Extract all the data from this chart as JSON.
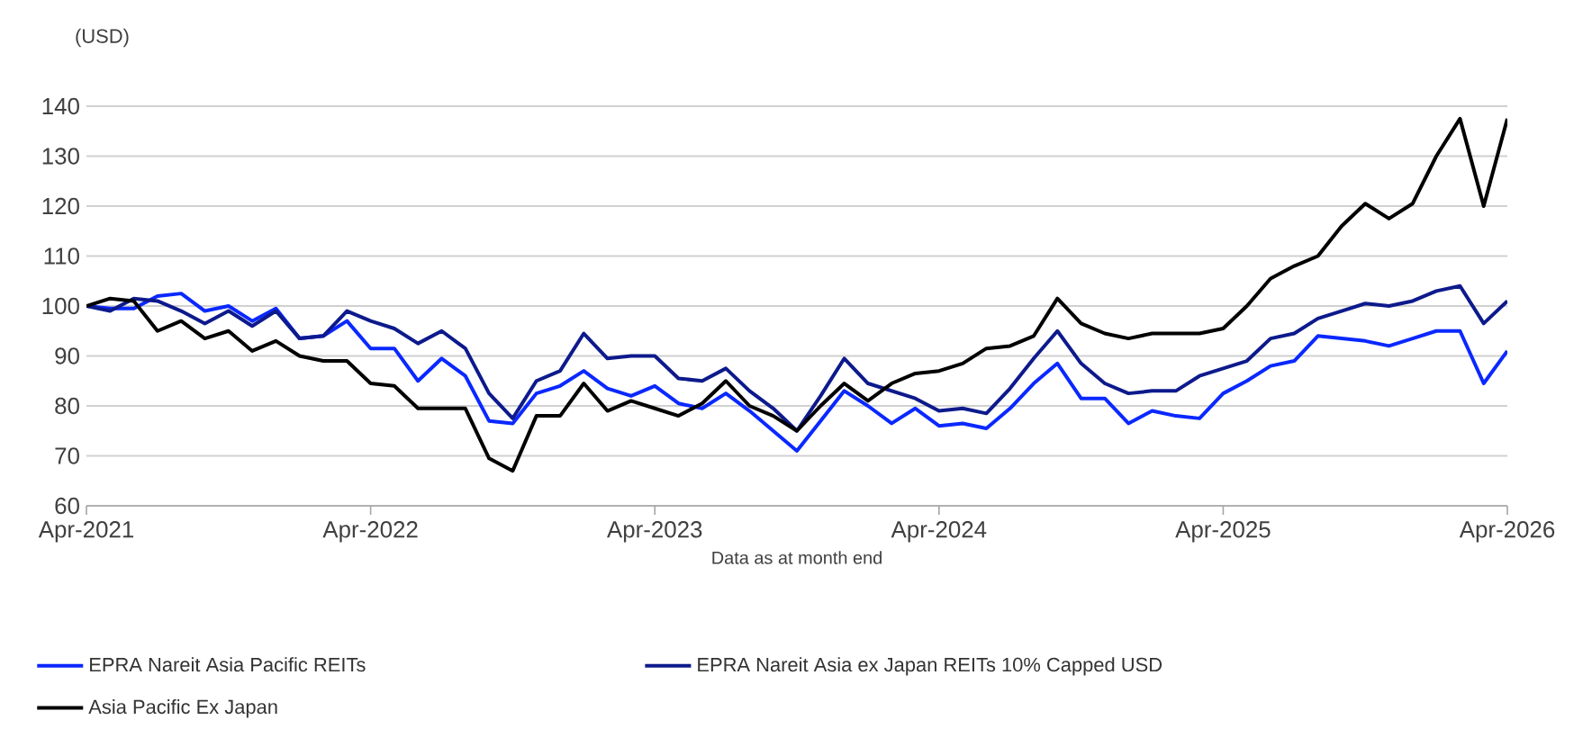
{
  "chart_data": {
    "type": "line",
    "ylabel": "(USD)",
    "xlabel": "Data as at month end",
    "categories": [
      "Apr-2021",
      null,
      null,
      null,
      null,
      null,
      null,
      null,
      null,
      null,
      null,
      null,
      "Apr-2022",
      null,
      null,
      null,
      null,
      null,
      null,
      null,
      null,
      null,
      null,
      null,
      "Apr-2023",
      null,
      null,
      null,
      null,
      null,
      null,
      null,
      null,
      null,
      null,
      null,
      "Apr-2024",
      null,
      null,
      null,
      null,
      null,
      null,
      null,
      null,
      null,
      null,
      null,
      "Apr-2025",
      null,
      null,
      null,
      null,
      null,
      null,
      null,
      null,
      null,
      null,
      null,
      "Apr-2026"
    ],
    "ylim": [
      60,
      140
    ],
    "yticks": [
      60,
      70,
      80,
      90,
      100,
      110,
      120,
      130,
      140
    ],
    "grid": "y",
    "legend": "bottom",
    "marker": "none",
    "line_style": "solid",
    "series": [
      {
        "name": "EPRA Nareit Asia Pacific REITs",
        "color": "#0a28ff",
        "values": [
          100,
          99.5,
          99.5,
          102,
          102.5,
          99,
          100,
          97,
          99.5,
          93.5,
          94,
          97,
          91.5,
          91.5,
          85,
          89.5,
          86,
          77,
          76.5,
          82.5,
          84,
          87,
          83.5,
          82,
          84,
          80.5,
          79.5,
          82.5,
          79,
          75,
          71,
          77,
          83,
          80,
          76.5,
          79.5,
          76,
          76.5,
          75.5,
          79.5,
          84.5,
          88.5,
          81.5,
          81.5,
          76.5,
          79,
          78,
          77.5,
          82.5,
          85,
          88,
          89,
          94,
          93.5,
          93,
          92,
          93.5,
          95,
          95,
          84.5,
          91
        ]
      },
      {
        "name": "EPRA Nareit Asia ex Japan REITs 10% Capped USD",
        "color": "#0d1a8c",
        "values": [
          100,
          99,
          101.5,
          101,
          99,
          96.5,
          99,
          96,
          99,
          93.5,
          94,
          99,
          97,
          95.5,
          92.5,
          95,
          91.5,
          82.5,
          77.5,
          85,
          87,
          94.5,
          89.5,
          90,
          90,
          85.5,
          85,
          87.5,
          83,
          79.5,
          75,
          82,
          89.5,
          84.5,
          83,
          81.5,
          79,
          79.5,
          78.5,
          83.5,
          89.5,
          95,
          88.5,
          84.5,
          82.5,
          83,
          83,
          86,
          87.5,
          89,
          93.5,
          94.5,
          97.5,
          99,
          100.5,
          100,
          101,
          103,
          104,
          96.5,
          101
        ]
      },
      {
        "name": "Asia Pacific Ex Japan",
        "color": "#000000",
        "values": [
          100,
          101.5,
          101,
          95,
          97,
          93.5,
          95,
          91,
          93,
          90,
          89,
          89,
          84.5,
          84,
          79.5,
          79.5,
          79.5,
          69.5,
          67,
          78,
          78,
          84.5,
          79,
          81,
          79.5,
          78,
          80.5,
          85,
          80,
          78,
          75,
          80,
          84.5,
          81,
          84.5,
          86.5,
          87,
          88.5,
          91.5,
          92,
          94,
          101.5,
          96.5,
          94.5,
          93.5,
          94.5,
          94.5,
          94.5,
          95.5,
          100,
          105.5,
          108,
          110,
          116,
          120.5,
          117.5,
          120.5,
          130,
          137.5,
          120,
          137.5
        ]
      }
    ]
  }
}
